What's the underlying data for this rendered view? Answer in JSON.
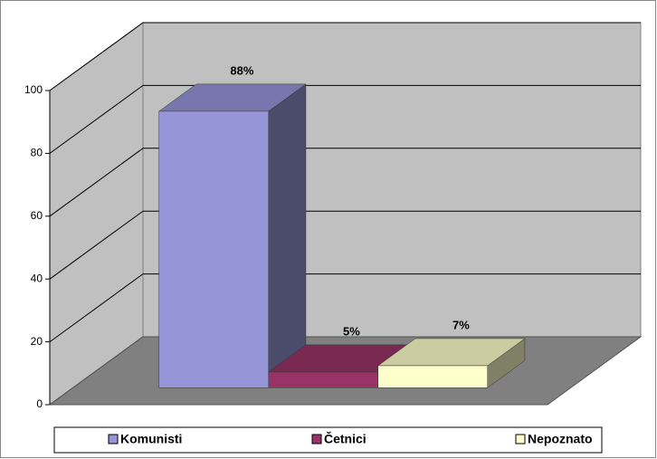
{
  "chart_data": {
    "type": "bar3d",
    "series": [
      {
        "name": "Komunisti",
        "color": "#9595d8",
        "values": [
          88
        ],
        "value_labels": [
          "88%"
        ]
      },
      {
        "name": "Četnici",
        "color": "#993366",
        "values": [
          5
        ],
        "value_labels": [
          "5%"
        ]
      },
      {
        "name": "Nepoznato",
        "color": "#ffffcc",
        "values": [
          7
        ],
        "value_labels": [
          "7%"
        ]
      }
    ],
    "ylim": [
      0,
      100
    ],
    "yticks": [
      0,
      20,
      40,
      60,
      80,
      100
    ],
    "grid": true,
    "legend": "bottom"
  }
}
